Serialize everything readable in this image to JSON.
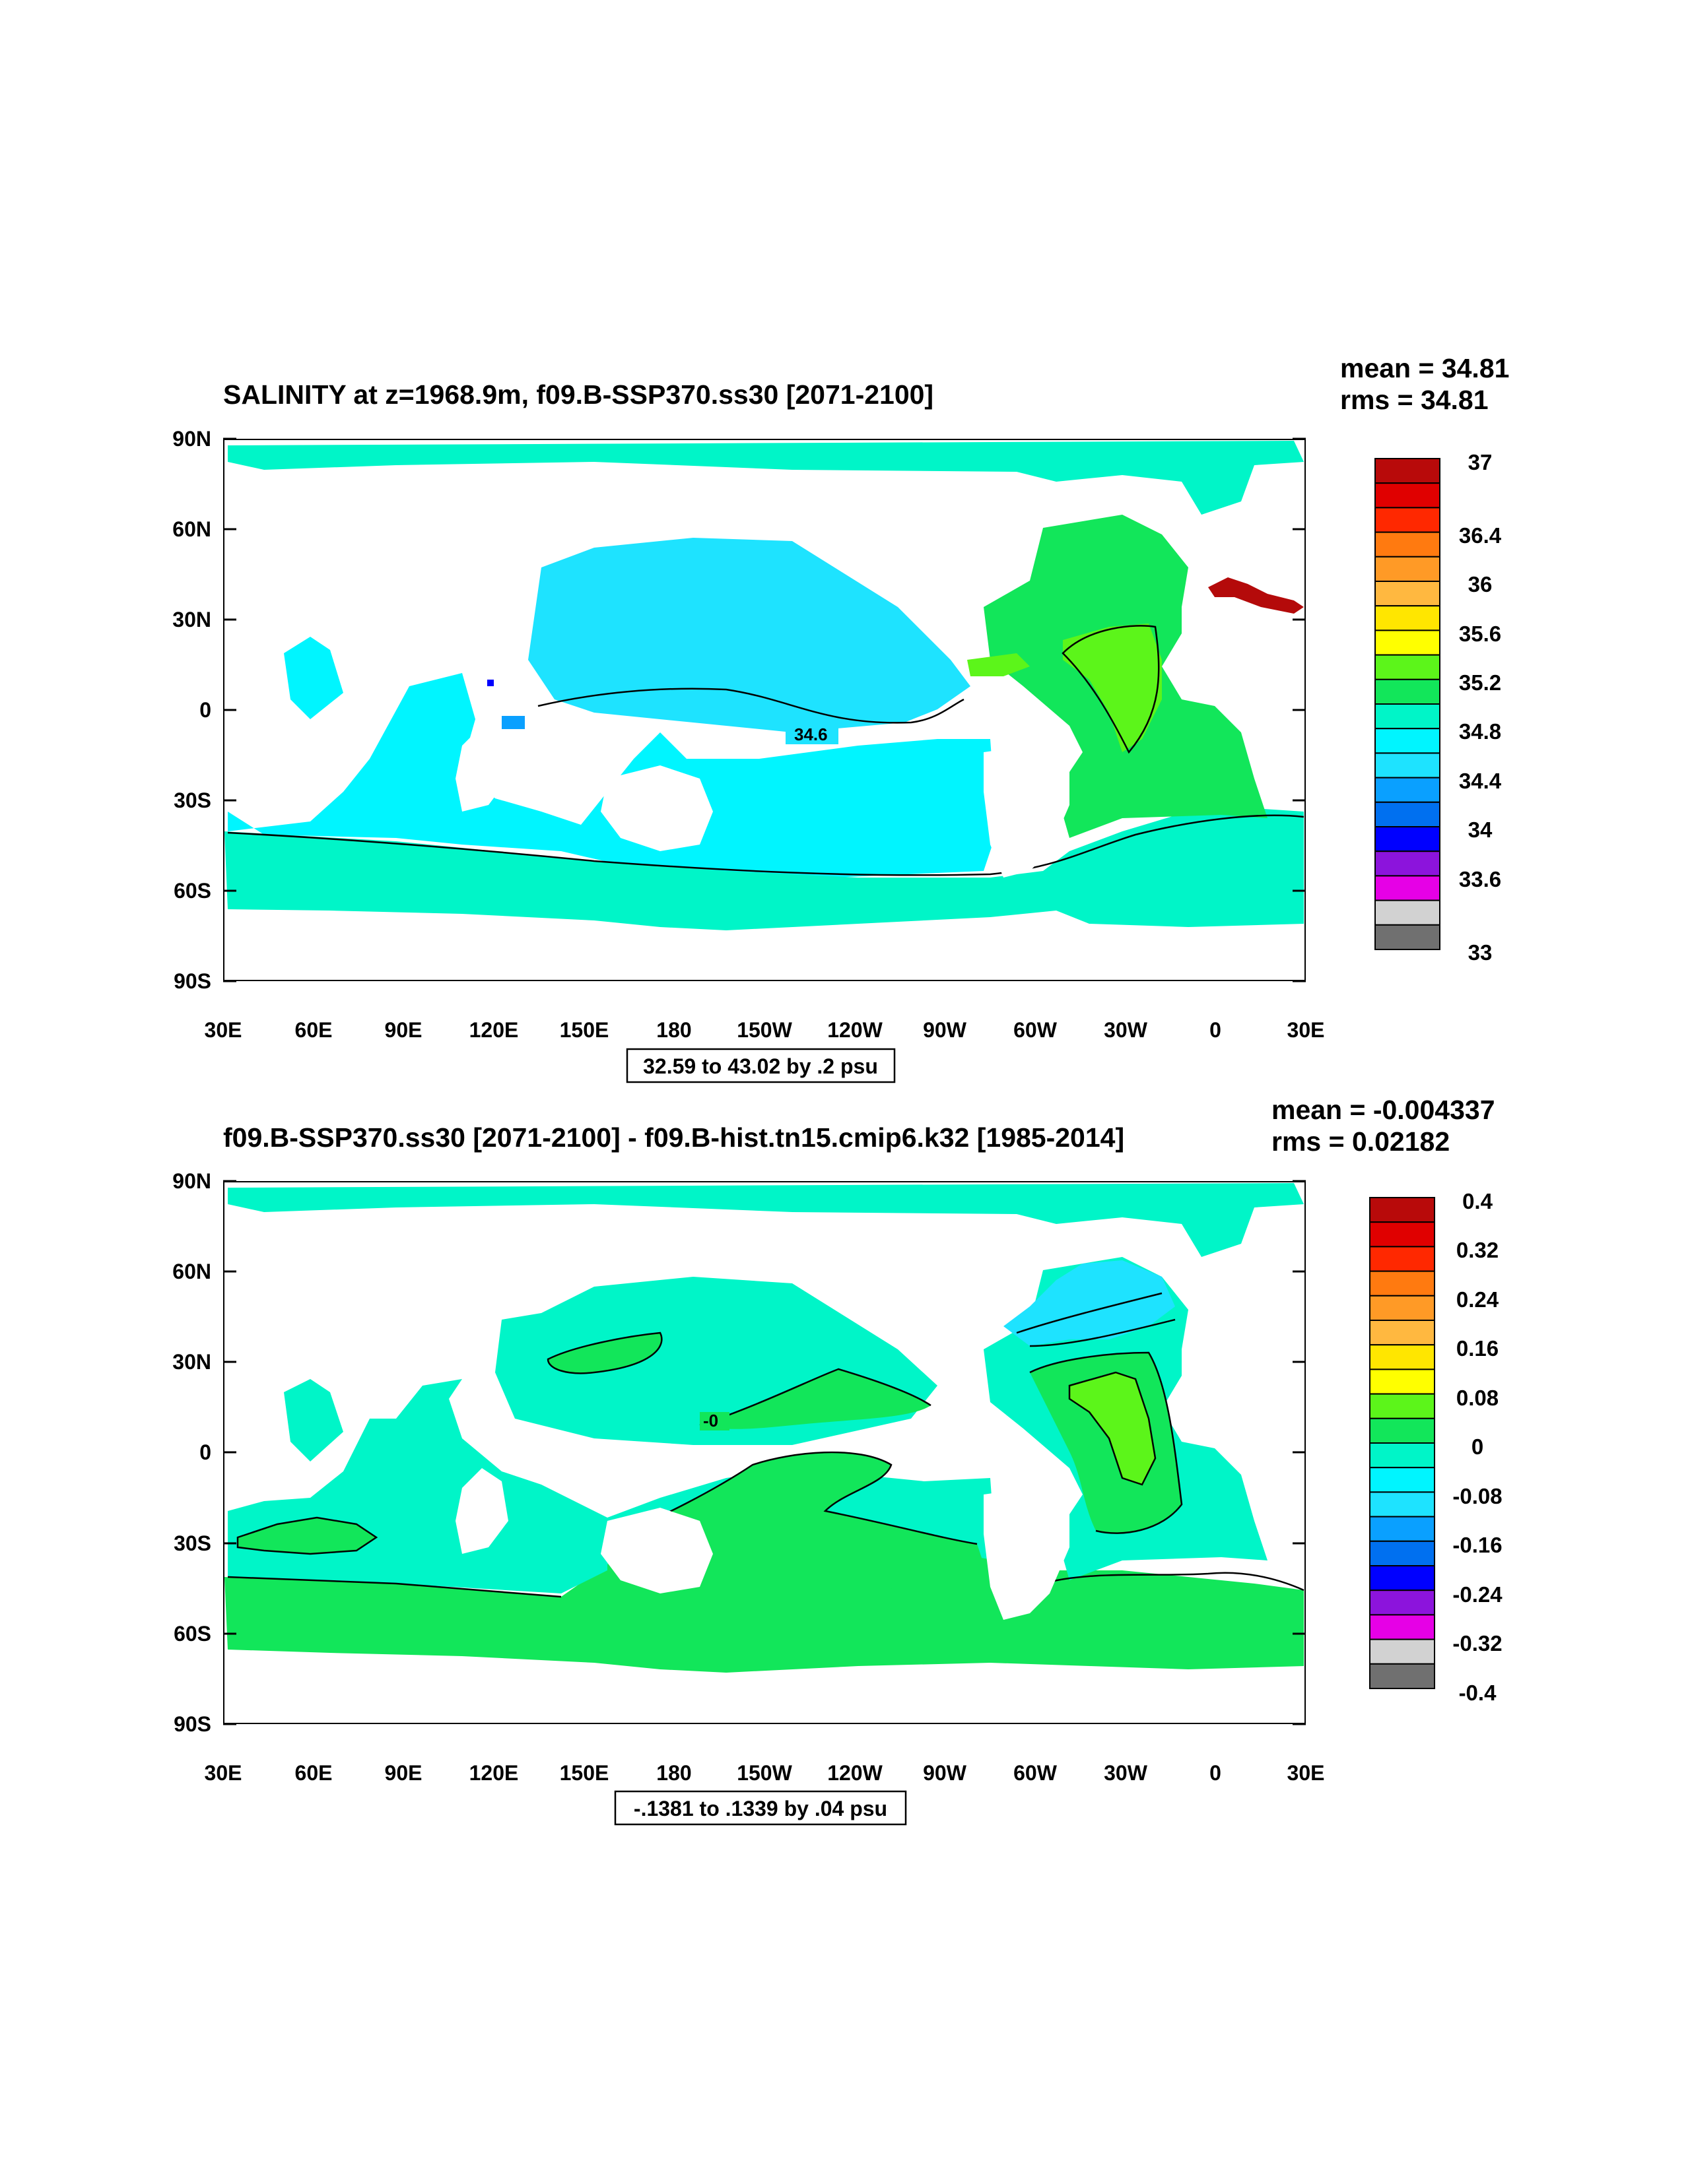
{
  "panels": [
    {
      "title": "SALINITY at z=1968.9m, f09.B-SSP370.ss30 [2071-2100]",
      "mean_text": "mean = 34.81",
      "rms_text": "rms = 34.81",
      "info_text": "32.59 to 43.02 by .2 psu",
      "lat_labels": [
        "90N",
        "60N",
        "30N",
        "0",
        "30S",
        "60S",
        "90S"
      ],
      "lon_labels": [
        "30E",
        "60E",
        "90E",
        "120E",
        "150E",
        "180",
        "150W",
        "120W",
        "90W",
        "60W",
        "30W",
        "0",
        "30E"
      ],
      "colorbar_labels": [
        "37",
        "36.4",
        "36",
        "35.6",
        "35.2",
        "34.8",
        "34.4",
        "34",
        "33.6",
        "33"
      ],
      "contour_label": "34.6",
      "colors": {
        "pacific": "#1ee3ff",
        "indian": "#00f5ff",
        "southern": "#00f5c8",
        "atlantic": "#12e65a",
        "core": "#5cf51a",
        "arctic": "#00f5c8",
        "med": "#b40a0a"
      }
    },
    {
      "title": "f09.B-SSP370.ss30 [2071-2100] - f09.B-hist.tn15.cmip6.k32 [1985-2014]",
      "mean_text": "mean = -0.004337",
      "rms_text": "rms = 0.02182",
      "info_text": "-.1381 to .1339 by .04 psu",
      "lat_labels": [
        "90N",
        "60N",
        "30N",
        "0",
        "30S",
        "60S",
        "90S"
      ],
      "lon_labels": [
        "30E",
        "60E",
        "90E",
        "120E",
        "150E",
        "180",
        "150W",
        "120W",
        "90W",
        "60W",
        "30W",
        "0",
        "30E"
      ],
      "colorbar_labels": [
        "0.4",
        "0.32",
        "0.24",
        "0.16",
        "0.08",
        "0",
        "-0.08",
        "-0.16",
        "-0.24",
        "-0.32",
        "-0.4"
      ],
      "contour_label": "-0",
      "colors": {
        "pacific": "#00f5c8",
        "indian": "#00f5c8",
        "southern": "#12e65a",
        "atlantic": "#00f5c8",
        "core": "#5cf51a",
        "arctic": "#00f5c8",
        "med": "#00f5c8",
        "neg": "#1ee3ff"
      }
    }
  ],
  "colorbar_colors": [
    "#b80a0a",
    "#e00000",
    "#ff2800",
    "#ff7a10",
    "#ff9a26",
    "#ffb840",
    "#ffe600",
    "#ffff00",
    "#5cf51a",
    "#12e65a",
    "#00f5c8",
    "#00f5ff",
    "#1ee3ff",
    "#0aa0ff",
    "#0070f0",
    "#0000ff",
    "#8c14dc",
    "#e600e6",
    "#d2d2d2",
    "#707070"
  ]
}
